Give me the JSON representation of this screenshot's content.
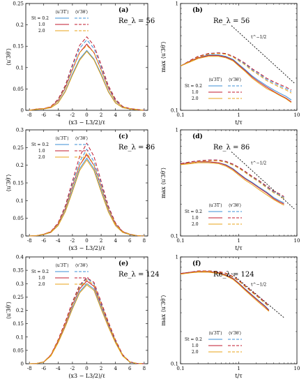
{
  "chart_data": [
    {
      "type": "line",
      "panel_label": "(a)",
      "annotation": "Re_λ = 56",
      "xlabel": "(x3 − L3/2)/ℓ",
      "ylabel": "⟨u′3θ′⟩",
      "xlim": [
        -8.5,
        8.5
      ],
      "ylim": [
        0,
        0.25
      ],
      "xticks": [
        "-8",
        "-6",
        "-4",
        "-2",
        "0",
        "2",
        "4",
        "6",
        "8"
      ],
      "yticks": [
        "0",
        "0.05",
        "0.1",
        "0.15",
        "0.2",
        "0.25"
      ],
      "legend_headers": [
        "⟨u′3T′⟩",
        "⟨v′3θ′⟩"
      ],
      "legend_rows": [
        "St = 0.2",
        "1.0",
        "2.0"
      ],
      "series_colors": [
        "#3b8fd6",
        "#c0182e",
        "#e8a317"
      ],
      "x": [
        -8,
        -7,
        -6,
        -5,
        -4,
        -3,
        -2,
        -1,
        0,
        1,
        2,
        3,
        4,
        5,
        6,
        7,
        8
      ],
      "series": [
        {
          "values": [
            0.0,
            0.002,
            0.003,
            0.006,
            0.018,
            0.045,
            0.085,
            0.12,
            0.14,
            0.12,
            0.085,
            0.045,
            0.018,
            0.006,
            0.003,
            0.001,
            0.0
          ]
        },
        {
          "values": [
            0.0,
            0.003,
            0.004,
            0.008,
            0.022,
            0.052,
            0.095,
            0.135,
            0.155,
            0.135,
            0.095,
            0.052,
            0.022,
            0.008,
            0.004,
            0.002,
            0.0
          ]
        },
        {
          "values": [
            0.0,
            0.002,
            0.003,
            0.006,
            0.017,
            0.043,
            0.082,
            0.117,
            0.138,
            0.118,
            0.082,
            0.043,
            0.017,
            0.006,
            0.003,
            0.001,
            0.0
          ]
        },
        {
          "values": [
            0.0,
            0.003,
            0.004,
            0.008,
            0.024,
            0.056,
            0.102,
            0.145,
            0.165,
            0.145,
            0.102,
            0.056,
            0.024,
            0.008,
            0.004,
            0.002,
            0.0
          ]
        },
        {
          "values": [
            0.0,
            0.003,
            0.004,
            0.009,
            0.026,
            0.058,
            0.107,
            0.152,
            0.172,
            0.152,
            0.107,
            0.058,
            0.026,
            0.009,
            0.004,
            0.002,
            0.0
          ]
        },
        {
          "values": [
            0.0,
            0.003,
            0.004,
            0.008,
            0.022,
            0.052,
            0.095,
            0.135,
            0.152,
            0.135,
            0.095,
            0.052,
            0.022,
            0.008,
            0.004,
            0.002,
            0.0
          ]
        }
      ]
    },
    {
      "type": "line",
      "panel_label": "(b)",
      "annotation": "Re_λ = 56",
      "slope_label": "t^−1/2",
      "xlabel": "t/τ",
      "ylabel": "max ⟨u′3θ′⟩",
      "xscale": "log",
      "yscale": "log",
      "xlim": [
        0.1,
        10
      ],
      "ylim": [
        0.1,
        1
      ],
      "xticks": [
        "0.1",
        "1",
        "10"
      ],
      "yticks": [
        "0.1",
        "1"
      ],
      "legend_headers": [
        "⟨u′3T′⟩",
        "⟨v′3θ′⟩"
      ],
      "legend_rows": [
        "St = 0.2",
        "1.0",
        "2.0"
      ],
      "series_colors": [
        "#3b8fd6",
        "#c0182e",
        "#e8a317"
      ],
      "x": [
        0.1,
        0.15,
        0.2,
        0.3,
        0.45,
        0.6,
        0.8,
        1.0,
        1.3,
        1.7,
        2.2,
        3.0,
        4.0,
        5.0,
        6.5,
        8.0
      ],
      "series": [
        {
          "values": [
            0.26,
            0.29,
            0.31,
            0.33,
            0.33,
            0.32,
            0.3,
            0.27,
            0.24,
            0.21,
            0.19,
            0.17,
            0.155,
            0.145,
            0.135,
            0.125
          ]
        },
        {
          "values": [
            0.26,
            0.29,
            0.31,
            0.325,
            0.325,
            0.315,
            0.295,
            0.265,
            0.235,
            0.205,
            0.185,
            0.165,
            0.15,
            0.14,
            0.13,
            0.12
          ]
        },
        {
          "values": [
            0.26,
            0.285,
            0.305,
            0.32,
            0.32,
            0.31,
            0.29,
            0.26,
            0.23,
            0.2,
            0.18,
            0.16,
            0.148,
            0.138,
            0.128,
            0.118
          ]
        },
        {
          "values": [
            0.26,
            0.295,
            0.32,
            0.34,
            0.345,
            0.34,
            0.32,
            0.295,
            0.27,
            0.24,
            0.22,
            0.195,
            0.18,
            0.17,
            0.16,
            0.15
          ]
        },
        {
          "values": [
            0.26,
            0.295,
            0.32,
            0.34,
            0.345,
            0.34,
            0.32,
            0.3,
            0.275,
            0.245,
            0.225,
            0.2,
            0.185,
            0.175,
            0.165,
            0.155
          ]
        },
        {
          "values": [
            0.26,
            0.29,
            0.315,
            0.335,
            0.34,
            0.335,
            0.315,
            0.29,
            0.265,
            0.235,
            0.215,
            0.19,
            0.175,
            0.165,
            0.155,
            0.145
          ]
        }
      ],
      "reference_line": {
        "x": [
          0.75,
          9.0
        ],
        "values": [
          0.62,
          0.18
        ]
      }
    },
    {
      "type": "line",
      "panel_label": "(c)",
      "annotation": "Re_λ = 86",
      "xlabel": "(x3 − L3/2)/ℓ",
      "ylabel": "⟨u′3θ′⟩",
      "xlim": [
        -8.5,
        8.5
      ],
      "ylim": [
        0,
        0.3
      ],
      "xticks": [
        "-8",
        "-6",
        "-4",
        "-2",
        "0",
        "2",
        "4",
        "6",
        "8"
      ],
      "yticks": [
        "0",
        "0.05",
        "0.1",
        "0.15",
        "0.2",
        "0.25",
        "0.3"
      ],
      "legend_headers": [
        "⟨u′3T′⟩",
        "⟨v′3θ′⟩"
      ],
      "legend_rows": [
        "St = 0.2",
        "1.0",
        "2.0"
      ],
      "series_colors": [
        "#3b8fd6",
        "#c0182e",
        "#e8a317"
      ],
      "x": [
        -8,
        -7,
        -6,
        -5,
        -4,
        -3,
        -2,
        -1,
        0,
        1,
        2,
        3,
        4,
        5,
        6,
        7,
        8
      ],
      "series": [
        {
          "values": [
            0.0,
            0.001,
            0.004,
            0.01,
            0.03,
            0.07,
            0.13,
            0.19,
            0.22,
            0.19,
            0.13,
            0.07,
            0.03,
            0.01,
            0.004,
            0.001,
            0.0
          ]
        },
        {
          "values": [
            0.0,
            0.001,
            0.005,
            0.012,
            0.034,
            0.077,
            0.14,
            0.2,
            0.23,
            0.2,
            0.14,
            0.077,
            0.034,
            0.012,
            0.005,
            0.001,
            0.0
          ]
        },
        {
          "values": [
            0.0,
            0.001,
            0.004,
            0.01,
            0.029,
            0.068,
            0.125,
            0.185,
            0.215,
            0.185,
            0.125,
            0.068,
            0.029,
            0.01,
            0.004,
            0.001,
            0.0
          ]
        },
        {
          "values": [
            0.0,
            0.001,
            0.005,
            0.012,
            0.035,
            0.08,
            0.148,
            0.21,
            0.245,
            0.21,
            0.148,
            0.08,
            0.035,
            0.012,
            0.005,
            0.001,
            0.0
          ]
        },
        {
          "values": [
            0.0,
            0.001,
            0.005,
            0.013,
            0.037,
            0.085,
            0.155,
            0.225,
            0.262,
            0.225,
            0.155,
            0.085,
            0.037,
            0.013,
            0.005,
            0.001,
            0.0
          ]
        },
        {
          "values": [
            0.0,
            0.001,
            0.005,
            0.012,
            0.033,
            0.076,
            0.14,
            0.2,
            0.235,
            0.2,
            0.14,
            0.076,
            0.033,
            0.012,
            0.005,
            0.001,
            0.0
          ]
        }
      ]
    },
    {
      "type": "line",
      "panel_label": "(d)",
      "annotation": "Re_λ = 86",
      "slope_label": "t^−1/2",
      "xlabel": "t/τ",
      "ylabel": "max ⟨u′3θ′⟩",
      "xscale": "log",
      "yscale": "log",
      "xlim": [
        0.1,
        10
      ],
      "ylim": [
        0.1,
        1
      ],
      "xticks": [
        "0.1",
        "1",
        "10"
      ],
      "yticks": [
        "0.1",
        "1"
      ],
      "legend_headers": [
        "⟨u′3T′⟩",
        "⟨v′3θ′⟩"
      ],
      "legend_rows": [
        "St = 0.2",
        "1.0",
        "2.0"
      ],
      "series_colors": [
        "#3b8fd6",
        "#c0182e",
        "#e8a317"
      ],
      "x": [
        0.1,
        0.15,
        0.2,
        0.3,
        0.45,
        0.6,
        0.8,
        1.0,
        1.3,
        1.7,
        2.2,
        3.0,
        4.0,
        5.0,
        6.0
      ],
      "series": [
        {
          "values": [
            0.48,
            0.49,
            0.5,
            0.5,
            0.49,
            0.47,
            0.43,
            0.39,
            0.35,
            0.32,
            0.29,
            0.26,
            0.23,
            0.215,
            0.205
          ]
        },
        {
          "values": [
            0.48,
            0.49,
            0.5,
            0.5,
            0.49,
            0.465,
            0.425,
            0.385,
            0.345,
            0.315,
            0.285,
            0.255,
            0.225,
            0.21,
            0.2
          ]
        },
        {
          "values": [
            0.47,
            0.48,
            0.49,
            0.49,
            0.48,
            0.455,
            0.415,
            0.375,
            0.335,
            0.305,
            0.275,
            0.245,
            0.22,
            0.205,
            0.195
          ]
        },
        {
          "values": [
            0.48,
            0.5,
            0.51,
            0.52,
            0.52,
            0.5,
            0.47,
            0.44,
            0.4,
            0.36,
            0.33,
            0.29,
            0.26,
            0.245,
            0.23
          ]
        },
        {
          "values": [
            0.48,
            0.5,
            0.51,
            0.52,
            0.52,
            0.505,
            0.475,
            0.445,
            0.405,
            0.365,
            0.335,
            0.295,
            0.265,
            0.25,
            0.235
          ]
        },
        {
          "values": [
            0.47,
            0.49,
            0.5,
            0.51,
            0.51,
            0.495,
            0.465,
            0.435,
            0.395,
            0.355,
            0.325,
            0.285,
            0.255,
            0.24,
            0.225
          ]
        }
      ],
      "reference_line": {
        "x": [
          0.75,
          9.0
        ],
        "values": [
          0.62,
          0.18
        ]
      }
    },
    {
      "type": "line",
      "panel_label": "(e)",
      "annotation": "Re_λ = 124",
      "xlabel": "(x3 − L3/2)/ℓ",
      "ylabel": "⟨u′3θ′⟩",
      "xlim": [
        -8.5,
        8.5
      ],
      "ylim": [
        0,
        0.4
      ],
      "xticks": [
        "-8",
        "-6",
        "-4",
        "-2",
        "0",
        "2",
        "4",
        "6",
        "8"
      ],
      "yticks": [
        "0",
        "0.05",
        "0.1",
        "0.15",
        "0.2",
        "0.25",
        "0.3",
        "0.35",
        "0.4"
      ],
      "legend_headers": [
        "⟨u′3T′⟩",
        "⟨v′3θ′⟩"
      ],
      "legend_rows": [
        "St = 0.2",
        "1.0",
        "2.0"
      ],
      "series_colors": [
        "#3b8fd6",
        "#c0182e",
        "#e8a317"
      ],
      "x": [
        -8,
        -7,
        -6,
        -5,
        -4,
        -3,
        -2,
        -1,
        0,
        1,
        2,
        3,
        4,
        5,
        6,
        7,
        8
      ],
      "series": [
        {
          "values": [
            0.0,
            0.001,
            0.006,
            0.03,
            0.08,
            0.14,
            0.21,
            0.27,
            0.3,
            0.28,
            0.21,
            0.14,
            0.08,
            0.03,
            0.006,
            0.001,
            0.0
          ]
        },
        {
          "values": [
            0.0,
            0.001,
            0.007,
            0.032,
            0.085,
            0.148,
            0.22,
            0.28,
            0.31,
            0.29,
            0.22,
            0.148,
            0.085,
            0.032,
            0.007,
            0.001,
            0.0
          ]
        },
        {
          "values": [
            0.0,
            0.001,
            0.006,
            0.029,
            0.078,
            0.138,
            0.205,
            0.265,
            0.295,
            0.275,
            0.205,
            0.138,
            0.078,
            0.029,
            0.006,
            0.001,
            0.0
          ]
        },
        {
          "values": [
            0.0,
            0.001,
            0.007,
            0.033,
            0.087,
            0.152,
            0.226,
            0.29,
            0.32,
            0.3,
            0.226,
            0.152,
            0.087,
            0.033,
            0.007,
            0.001,
            0.0
          ]
        },
        {
          "values": [
            0.0,
            0.001,
            0.007,
            0.034,
            0.09,
            0.157,
            0.232,
            0.295,
            0.322,
            0.305,
            0.232,
            0.157,
            0.09,
            0.034,
            0.007,
            0.001,
            0.0
          ]
        },
        {
          "values": [
            0.0,
            0.001,
            0.007,
            0.032,
            0.086,
            0.15,
            0.222,
            0.285,
            0.315,
            0.295,
            0.222,
            0.15,
            0.086,
            0.032,
            0.007,
            0.001,
            0.0
          ]
        }
      ]
    },
    {
      "type": "line",
      "panel_label": "(f)",
      "annotation": "Re_λ = 124",
      "slope_label": "t^−1/2",
      "xlabel": "t/τ",
      "ylabel": "max ⟨u′3θ′⟩",
      "xscale": "log",
      "yscale": "log",
      "xlim": [
        0.1,
        10
      ],
      "ylim": [
        0.1,
        1
      ],
      "xticks": [
        "0.1",
        "1",
        "10"
      ],
      "yticks": [
        "0.1",
        "1"
      ],
      "legend_headers": [
        "⟨u′3T′⟩",
        "⟨v′3θ′⟩"
      ],
      "legend_rows": [
        "St = 0.2",
        "1.0",
        "2.0"
      ],
      "series_colors": [
        "#3b8fd6",
        "#c0182e",
        "#e8a317"
      ],
      "x": [
        0.1,
        0.15,
        0.2,
        0.3,
        0.45,
        0.6,
        0.8,
        1.0,
        1.3,
        1.7,
        2.2,
        2.8,
        3.3
      ],
      "series": [
        {
          "values": [
            0.7,
            0.72,
            0.73,
            0.73,
            0.71,
            0.68,
            0.63,
            0.57,
            0.5,
            0.44,
            0.39,
            0.35,
            0.32
          ]
        },
        {
          "values": [
            0.7,
            0.72,
            0.73,
            0.73,
            0.71,
            0.675,
            0.625,
            0.565,
            0.495,
            0.435,
            0.385,
            0.345,
            0.315
          ]
        },
        {
          "values": [
            0.69,
            0.71,
            0.72,
            0.72,
            0.7,
            0.665,
            0.615,
            0.555,
            0.485,
            0.425,
            0.375,
            0.335,
            0.31
          ]
        },
        {
          "values": [
            0.7,
            0.72,
            0.74,
            0.74,
            0.73,
            0.7,
            0.65,
            0.6,
            0.53,
            0.47,
            0.42,
            0.375,
            0.345
          ]
        },
        {
          "values": [
            0.7,
            0.72,
            0.74,
            0.74,
            0.73,
            0.705,
            0.655,
            0.605,
            0.535,
            0.475,
            0.425,
            0.38,
            0.35
          ]
        },
        {
          "values": [
            0.69,
            0.71,
            0.73,
            0.735,
            0.72,
            0.695,
            0.645,
            0.595,
            0.525,
            0.465,
            0.415,
            0.37,
            0.34
          ]
        }
      ],
      "reference_line": {
        "x": [
          0.75,
          6.0
        ],
        "values": [
          0.7,
          0.27
        ]
      }
    }
  ]
}
